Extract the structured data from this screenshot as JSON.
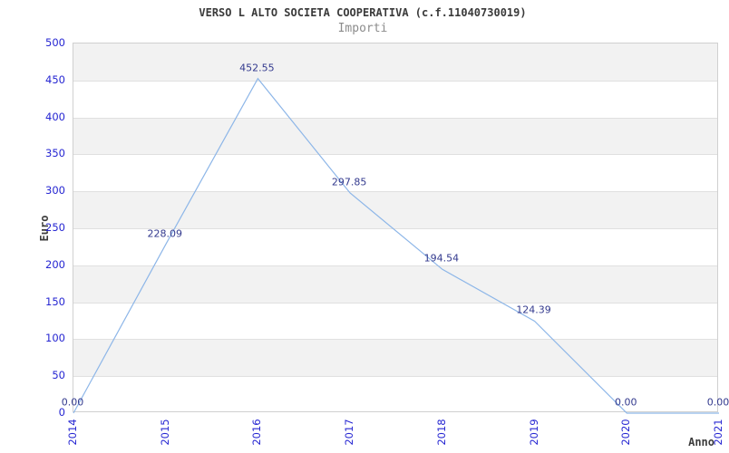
{
  "chart_data": {
    "type": "line",
    "title": "VERSO L ALTO SOCIETA COOPERATIVA (c.f.11040730019)",
    "subtitle": "Importi",
    "xlabel": "Anno",
    "ylabel": "Euro",
    "categories": [
      "2014",
      "2015",
      "2016",
      "2017",
      "2018",
      "2019",
      "2020",
      "2021"
    ],
    "values": [
      0,
      228.09,
      452.55,
      297.85,
      194.54,
      124.39,
      0,
      0
    ],
    "point_labels": [
      "0.00",
      "228.09",
      "452.55",
      "297.85",
      "194.54",
      "124.39",
      "0.00",
      "0.00"
    ],
    "y_ticks": [
      0,
      50,
      100,
      150,
      200,
      250,
      300,
      350,
      400,
      450,
      500
    ],
    "ylim": [
      0,
      500
    ],
    "grid": "horizontal-alternating-bands",
    "legend": "none",
    "colors": {
      "line": "#8db6e8",
      "tick_label": "#2626d2",
      "point_label": "#333a8e",
      "band_gray": "#f2f2f2",
      "band_line": "#e0e0e0",
      "plot_border": "#d0d0d0",
      "title": "#3a3a3a",
      "subtitle": "#8c8c8c",
      "axis_title": "#3c3c3c"
    }
  }
}
